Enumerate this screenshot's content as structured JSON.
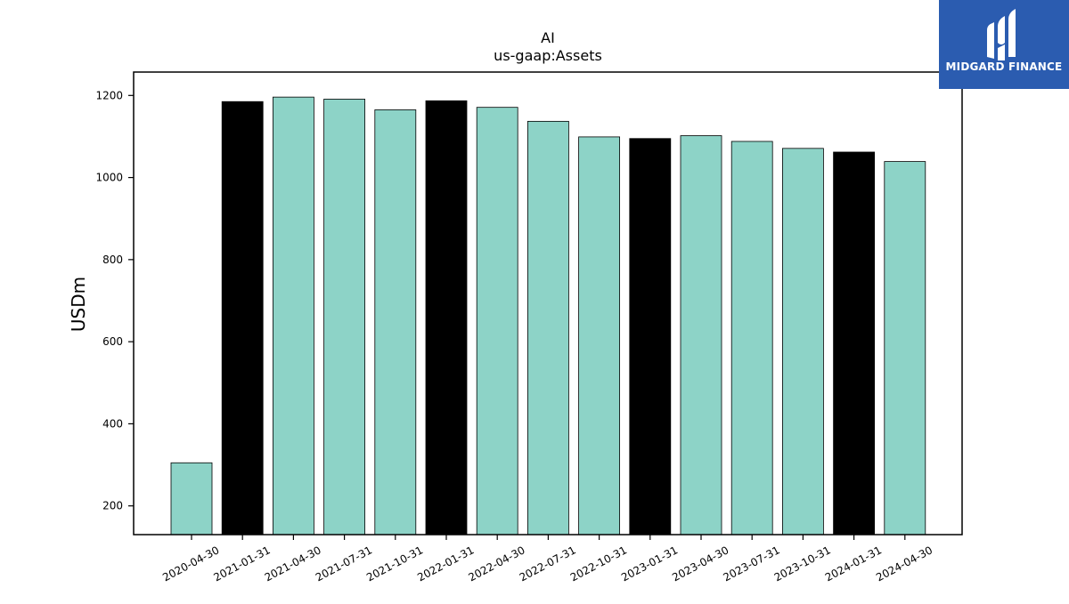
{
  "brand": {
    "name": "MIDGARD FINANCE",
    "bg_color": "#2b5cb0",
    "icon": "midgard-m-logo-icon"
  },
  "chart_data": {
    "type": "bar",
    "title": "AI",
    "subtitle": "us-gaap:Assets",
    "xlabel": "",
    "ylabel": "USDm",
    "ylim": [
      130,
      1257
    ],
    "yticks": [
      200,
      400,
      600,
      800,
      1000,
      1200
    ],
    "grid": false,
    "legend": "none",
    "colors": {
      "default": "#8dd3c7",
      "highlight": "#000000"
    },
    "categories": [
      "2020-04-30",
      "2021-01-31",
      "2021-04-30",
      "2021-07-31",
      "2021-10-31",
      "2022-01-31",
      "2022-04-30",
      "2022-07-31",
      "2022-10-31",
      "2023-01-31",
      "2023-04-30",
      "2023-07-31",
      "2023-10-31",
      "2024-01-31",
      "2024-04-30"
    ],
    "values": [
      305,
      1185,
      1196,
      1191,
      1165,
      1187,
      1171,
      1137,
      1099,
      1095,
      1102,
      1088,
      1071,
      1062,
      1039
    ],
    "highlighted": [
      false,
      true,
      false,
      false,
      false,
      true,
      false,
      false,
      false,
      true,
      false,
      false,
      false,
      true,
      false
    ]
  }
}
